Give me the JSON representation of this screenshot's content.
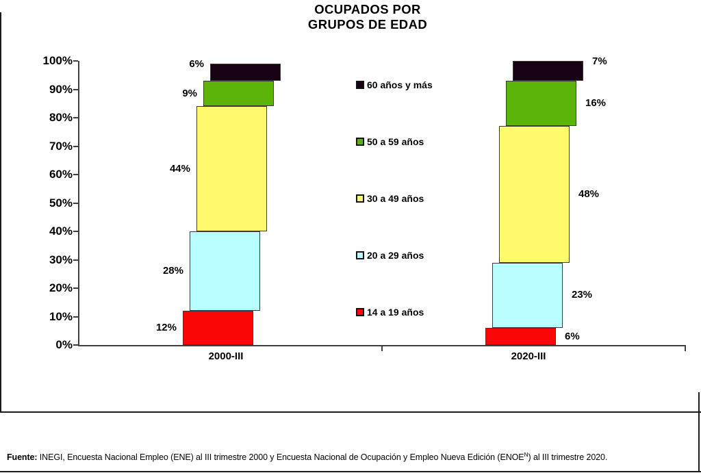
{
  "page": {
    "title_line1": "OCUPADOS POR",
    "title_line2": "GRUPOS DE EDAD",
    "footer": {
      "label_bold": "Fuente:",
      "text_before_sup": " INEGI, Encuesta Nacional Empleo (ENE) al III trimestre 2000 y Encuesta Nacional de Ocupación y Empleo Nueva Edición (ENOE",
      "superscript": "N",
      "text_after_sup": ") al III trimestre 2020."
    }
  },
  "chart_data": {
    "type": "bar",
    "subtype": "stacked-percentage",
    "title": "OCUPADOS POR GRUPOS DE EDAD",
    "categories": [
      "2000-III",
      "2020-III"
    ],
    "series": [
      {
        "name": "14 a 19 años",
        "color": "#FA0606",
        "values": [
          12,
          6
        ],
        "value_labels": [
          "12%",
          "6%"
        ]
      },
      {
        "name": "20 a 29 años",
        "color": "#BAFFFF",
        "values": [
          28,
          23
        ],
        "value_labels": [
          "28%",
          "23%"
        ]
      },
      {
        "name": "30 a 49 años",
        "color": "#FFFA6B",
        "values": [
          44,
          48
        ],
        "value_labels": [
          "44%",
          "48%"
        ]
      },
      {
        "name": "50 a 59 años",
        "color": "#5CB30A",
        "values": [
          9,
          16
        ],
        "value_labels": [
          "9%",
          "16%"
        ]
      },
      {
        "name": "60 años y más",
        "color": "#170112",
        "values": [
          6,
          7
        ],
        "value_labels": [
          "6%",
          "7%"
        ]
      }
    ],
    "legend_order_top_to_bottom": [
      "60 años y más",
      "50 a 59 años",
      "30 a 49 años",
      "20 a 29 años",
      "14 a 19 años"
    ],
    "y_ticks": [
      "0%",
      "10%",
      "20%",
      "30%",
      "40%",
      "50%",
      "60%",
      "70%",
      "80%",
      "90%",
      "100%"
    ],
    "ylim": [
      0,
      100
    ],
    "grid": false,
    "legend_position": "center-between-bars",
    "value_label_side_per_category": [
      "left",
      "right"
    ]
  }
}
